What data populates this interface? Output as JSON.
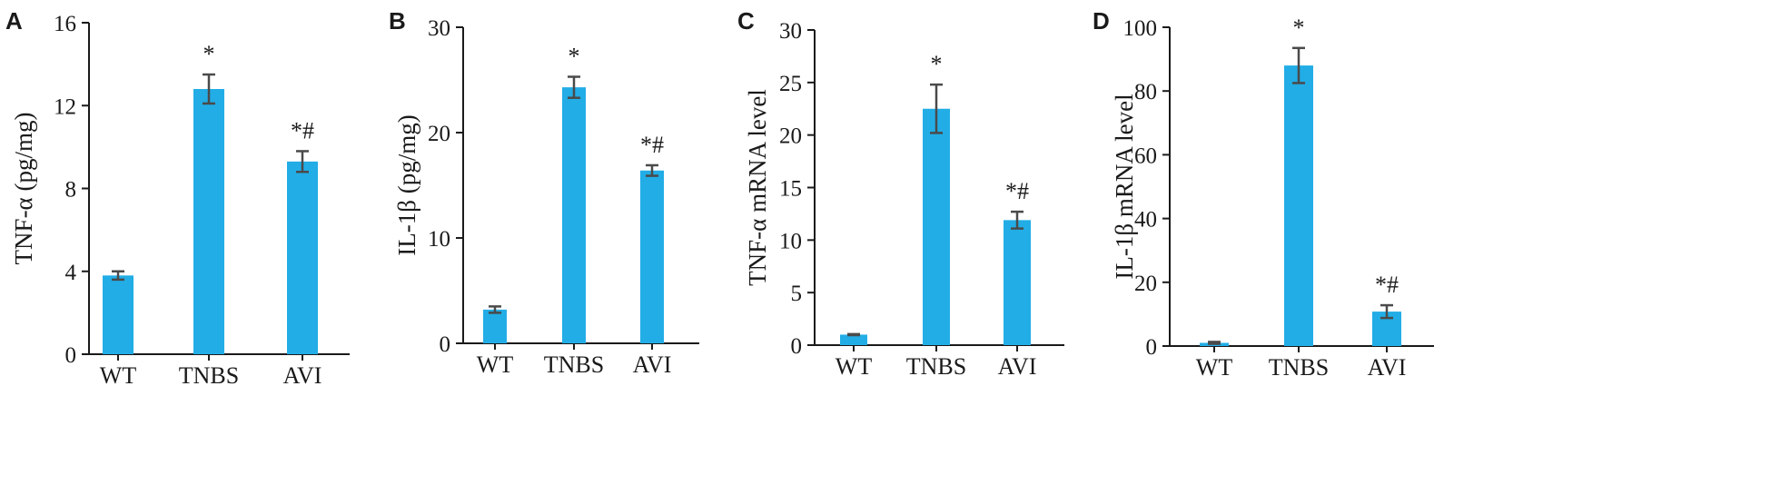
{
  "colors": {
    "bar": "#22ade6",
    "axis": "#1a1a1a",
    "error_bar": "#4a4a4a"
  },
  "chart_data": [
    {
      "type": "bar",
      "panel_label": "A",
      "title": "",
      "xlabel": "",
      "ylabel": "TNF-α (pg/mg)",
      "categories": [
        "WT",
        "TNBS",
        "AVI"
      ],
      "values": [
        3.8,
        12.8,
        9.3
      ],
      "errors": [
        0.2,
        0.7,
        0.5
      ],
      "annotations": [
        "",
        "*",
        "*#"
      ],
      "ylim": [
        0,
        16
      ],
      "yticks": [
        0,
        4,
        8,
        12,
        16
      ]
    },
    {
      "type": "bar",
      "panel_label": "B",
      "title": "",
      "xlabel": "",
      "ylabel": "IL-1β (pg/mg)",
      "categories": [
        "WT",
        "TNBS",
        "AVI"
      ],
      "values": [
        3.2,
        24.3,
        16.4
      ],
      "errors": [
        0.3,
        1.0,
        0.5
      ],
      "annotations": [
        "",
        "*",
        "*#"
      ],
      "ylim": [
        0,
        30
      ],
      "yticks": [
        0,
        10,
        20,
        30
      ]
    },
    {
      "type": "bar",
      "panel_label": "C",
      "title": "",
      "xlabel": "",
      "ylabel": "TNF-α mRNA level",
      "categories": [
        "WT",
        "TNBS",
        "AVI"
      ],
      "values": [
        1.0,
        22.5,
        11.9
      ],
      "errors": [
        0.05,
        2.3,
        0.8
      ],
      "annotations": [
        "",
        "*",
        "*#"
      ],
      "ylim": [
        0,
        30
      ],
      "yticks": [
        0,
        5,
        10,
        15,
        20,
        25,
        30
      ]
    },
    {
      "type": "bar",
      "panel_label": "D",
      "title": "",
      "xlabel": "",
      "ylabel": "IL-1β mRNA level",
      "categories": [
        "WT",
        "TNBS",
        "AVI"
      ],
      "values": [
        1.0,
        88.0,
        10.8
      ],
      "errors": [
        0.3,
        5.5,
        2.0
      ],
      "annotations": [
        "",
        "*",
        "*#"
      ],
      "ylim": [
        0,
        100
      ],
      "yticks": [
        0,
        20,
        40,
        60,
        80,
        100
      ]
    }
  ]
}
